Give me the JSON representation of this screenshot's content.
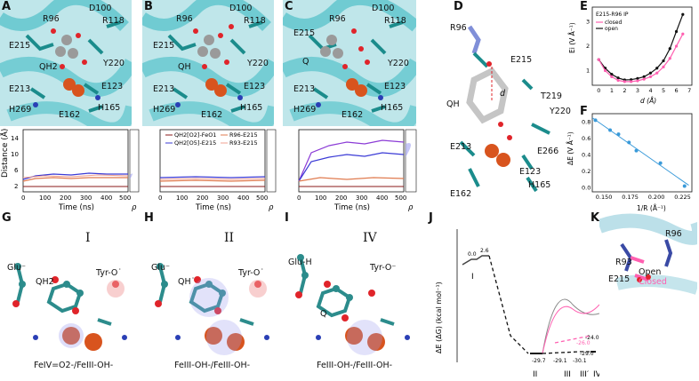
{
  "panel_labels": {
    "A": "A",
    "B": "B",
    "C": "C",
    "D": "D",
    "E": "E",
    "F": "F",
    "G": "G",
    "H": "H",
    "I": "I",
    "J": "J",
    "K": "K"
  },
  "panelA": {
    "residues": [
      "R96",
      "D100",
      "R118",
      "E215",
      "QH2",
      "Y220",
      "E213",
      "E123",
      "H269",
      "E162",
      "H165"
    ]
  },
  "panelB": {
    "residues": [
      "R96",
      "D100",
      "R118",
      "E215",
      "QH",
      "Y220",
      "E213",
      "E123",
      "H269",
      "E162",
      "H165"
    ]
  },
  "panelC": {
    "residues": [
      "R96",
      "D100",
      "R118",
      "E215",
      "Q",
      "Y220",
      "E213",
      "E123",
      "H269",
      "E162",
      "H165"
    ]
  },
  "panelD": {
    "residues": [
      "R96",
      "E215",
      "d",
      "QH",
      "T219",
      "Y220",
      "E213",
      "E266",
      "E123",
      "H165",
      "E162"
    ]
  },
  "distance_plots": {
    "ylabel": "Distance (Å)",
    "xlabel": "Time (ns)",
    "rho": "ρ",
    "yticks": [
      "2",
      "6",
      "10",
      "14"
    ],
    "xticks": [
      "0",
      "100",
      "200",
      "300",
      "400",
      "500"
    ],
    "legend": [
      {
        "name": "QH2[O2]-FeO1",
        "color": "#8b1a1a"
      },
      {
        "name": "R96-E215",
        "color": "#e07b4f"
      },
      {
        "name": "QH2[O5]-E215",
        "color": "#3b3bd6"
      },
      {
        "name": "R93-E215",
        "color": "#f0a090"
      }
    ]
  },
  "panelE": {
    "legend_title": "E215-R96 IP",
    "legend": [
      {
        "name": "closed",
        "color": "#ff5fb0"
      },
      {
        "name": "open",
        "color": "#111111"
      }
    ],
    "ylabel": "Ei (V Å⁻¹)",
    "xlabel": "d (Å)",
    "xticks": [
      "0",
      "1",
      "2",
      "3",
      "4",
      "5",
      "6",
      "7"
    ],
    "yticks": [
      "1",
      "2",
      "3"
    ]
  },
  "panelF": {
    "ylabel": "ΔE (V Å⁻¹)",
    "xlabel": "1/R (Å⁻¹)",
    "xticks": [
      "0.150",
      "0.175",
      "0.200",
      "0.225"
    ],
    "yticks": [
      "0.0",
      "0.2",
      "0.4",
      "0.6",
      "0.8"
    ]
  },
  "chart_data": [
    {
      "type": "line",
      "title": "",
      "xlabel": "d (Å)",
      "ylabel": "Ei (V Å⁻¹)",
      "xlim": [
        -0.5,
        7.2
      ],
      "ylim": [
        0.4,
        3.6
      ],
      "series": [
        {
          "name": "open",
          "color": "#111111",
          "x": [
            0,
            0.5,
            1,
            1.5,
            2,
            2.5,
            3,
            3.5,
            4,
            4.5,
            5,
            5.5,
            6,
            6.5
          ],
          "y": [
            1.45,
            1.1,
            0.85,
            0.7,
            0.62,
            0.63,
            0.68,
            0.75,
            0.9,
            1.1,
            1.4,
            1.9,
            2.6,
            3.3
          ]
        },
        {
          "name": "closed",
          "color": "#ff5fb0",
          "x": [
            0,
            0.5,
            1,
            1.5,
            2,
            2.5,
            3,
            3.5,
            4,
            4.5,
            5,
            5.5,
            6,
            6.5
          ],
          "y": [
            1.45,
            1.0,
            0.75,
            0.6,
            0.55,
            0.55,
            0.58,
            0.65,
            0.75,
            0.9,
            1.15,
            1.5,
            2.0,
            2.5
          ]
        }
      ]
    },
    {
      "type": "scatter",
      "title": "",
      "xlabel": "1/R (Å⁻¹)",
      "ylabel": "ΔE (V Å⁻¹)",
      "xlim": [
        0.14,
        0.235
      ],
      "ylim": [
        -0.05,
        0.9
      ],
      "series": [
        {
          "name": "",
          "color": "#3a9ad9",
          "x": [
            0.143,
            0.157,
            0.165,
            0.175,
            0.182,
            0.205,
            0.228
          ],
          "y": [
            0.82,
            0.7,
            0.65,
            0.55,
            0.45,
            0.3,
            0.02
          ]
        }
      ]
    },
    {
      "type": "line",
      "title": "",
      "xlabel": "",
      "ylabel": "ΔE (ΔG) (kcal mol⁻¹)",
      "states": [
        "I",
        "II",
        "III",
        "III′",
        "IV"
      ],
      "energy_labels": [
        "0.0",
        "2.6",
        "-29.7",
        "-29.1",
        "-26.0",
        "-30.1",
        "-29.0",
        "-24.0"
      ]
    }
  ],
  "panelG": {
    "title": "I",
    "labels": [
      "Glu⁻",
      "QH2",
      "Tyr-O˙"
    ],
    "caption": "FeIV=O2-/FeIII-OH-"
  },
  "panelH": {
    "title": "II",
    "labels": [
      "Glu⁻",
      "QH˙",
      "Tyr-O˙"
    ],
    "caption": "FeIII-OH-/FeIII-OH-"
  },
  "panelI": {
    "title": "IV",
    "labels": [
      "Glu-H",
      "Tyr-O⁻",
      "Q"
    ],
    "caption": "FeIII-OH-/FeIII-OH-"
  },
  "panelJ": {
    "ylabel": "ΔE (ΔG) (kcal mol⁻¹)",
    "states": [
      "I",
      "II",
      "III",
      "III′",
      "IV"
    ],
    "values": [
      "0.0",
      "2.6",
      "-29.7",
      "-29.1",
      "-26.0",
      "-30.1",
      "-29.0",
      "-24.0"
    ]
  },
  "panelK": {
    "labels": [
      "R96",
      "R93",
      "E215",
      "Open",
      "Closed"
    ]
  }
}
